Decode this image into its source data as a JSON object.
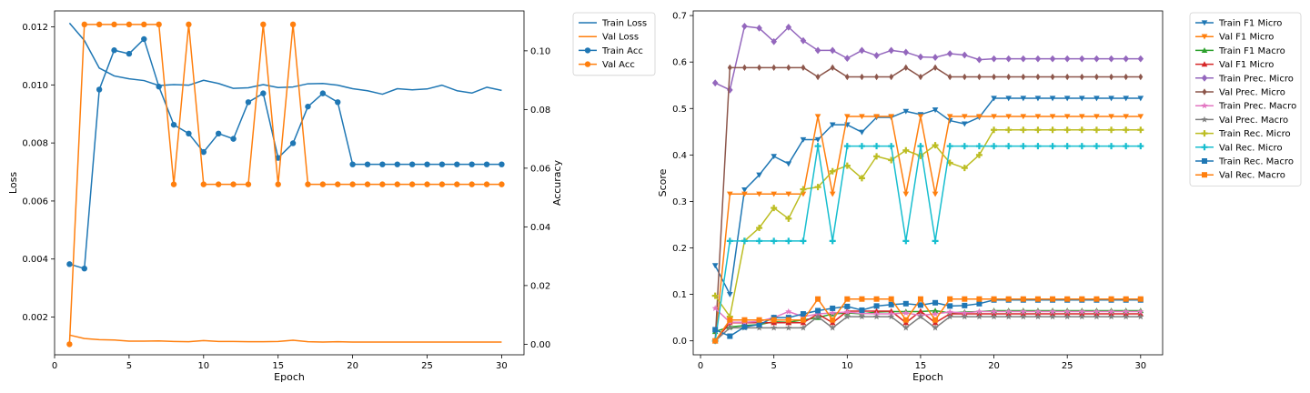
{
  "chart_data": [
    {
      "type": "line",
      "xlabel": "Epoch",
      "ylabel": "Loss",
      "ylabel_right": "Accuracy",
      "xlim": [
        0,
        31.5
      ],
      "ylim": [
        0.0007,
        0.01255
      ],
      "ylim_right": [
        -0.0036,
        0.1136
      ],
      "xticks": [
        "0",
        "5",
        "10",
        "15",
        "20",
        "25",
        "30"
      ],
      "yticks": [
        "0.002",
        "0.004",
        "0.006",
        "0.008",
        "0.010",
        "0.012"
      ],
      "yticks_right": [
        "0.00",
        "0.02",
        "0.04",
        "0.06",
        "0.08",
        "0.10"
      ],
      "grid": false,
      "legend_position": "outside-top-right",
      "x": [
        1,
        2,
        3,
        4,
        5,
        6,
        7,
        8,
        9,
        10,
        11,
        12,
        13,
        14,
        15,
        16,
        17,
        18,
        19,
        20,
        21,
        22,
        23,
        24,
        25,
        26,
        27,
        28,
        29,
        30
      ],
      "series": [
        {
          "name": "Train Loss",
          "axis": "left",
          "color": "#1f77b4",
          "marker": "none",
          "values": [
            0.01213,
            0.01153,
            0.01058,
            0.01031,
            0.01021,
            0.01015,
            0.00998,
            0.01001,
            0.00999,
            0.01016,
            0.01005,
            0.00988,
            0.0099,
            0.01001,
            0.00991,
            0.00993,
            0.01004,
            0.01005,
            0.00999,
            0.00987,
            0.0098,
            0.00968,
            0.00987,
            0.00983,
            0.00986,
            0.00999,
            0.0098,
            0.00972,
            0.00992,
            0.00981
          ]
        },
        {
          "name": "Val Loss",
          "axis": "left",
          "color": "#ff7f0e",
          "marker": "none",
          "values": [
            0.00138,
            0.00126,
            0.00122,
            0.00121,
            0.00117,
            0.00117,
            0.00118,
            0.00116,
            0.00115,
            0.00119,
            0.00116,
            0.00116,
            0.00115,
            0.00115,
            0.00116,
            0.0012,
            0.00115,
            0.00114,
            0.00115,
            0.00114,
            0.00114,
            0.00114,
            0.00114,
            0.00114,
            0.00114,
            0.00114,
            0.00114,
            0.00114,
            0.00114,
            0.00114
          ]
        },
        {
          "name": "Train Acc",
          "axis": "right",
          "color": "#1f77b4",
          "marker": "circle",
          "values": [
            0.0273,
            0.0258,
            0.0868,
            0.1002,
            0.099,
            0.104,
            0.0878,
            0.0748,
            0.0718,
            0.0655,
            0.0718,
            0.07,
            0.0825,
            0.0855,
            0.0635,
            0.0685,
            0.081,
            0.0855,
            0.0825,
            0.0613,
            0.0613,
            0.0613,
            0.0613,
            0.0613,
            0.0613,
            0.0613,
            0.0613,
            0.0613,
            0.0613,
            0.0613
          ]
        },
        {
          "name": "Val Acc",
          "axis": "right",
          "color": "#ff7f0e",
          "marker": "circle",
          "values": [
            0.0,
            0.109,
            0.109,
            0.109,
            0.109,
            0.109,
            0.109,
            0.0545,
            0.109,
            0.0545,
            0.0545,
            0.0545,
            0.0545,
            0.109,
            0.0545,
            0.109,
            0.0545,
            0.0545,
            0.0545,
            0.0545,
            0.0545,
            0.0545,
            0.0545,
            0.0545,
            0.0545,
            0.0545,
            0.0545,
            0.0545,
            0.0545,
            0.0545
          ]
        }
      ]
    },
    {
      "type": "line",
      "xlabel": "Epoch",
      "ylabel": "Score",
      "xlim": [
        -0.5,
        31.5
      ],
      "ylim": [
        -0.03,
        0.71
      ],
      "xticks": [
        "0",
        "5",
        "10",
        "15",
        "20",
        "25",
        "30"
      ],
      "yticks": [
        "0.0",
        "0.1",
        "0.2",
        "0.3",
        "0.4",
        "0.5",
        "0.6",
        "0.7"
      ],
      "grid": false,
      "legend_position": "outside-top-right",
      "x": [
        1,
        2,
        3,
        4,
        5,
        6,
        7,
        8,
        9,
        10,
        11,
        12,
        13,
        14,
        15,
        16,
        17,
        18,
        19,
        20,
        21,
        22,
        23,
        24,
        25,
        26,
        27,
        28,
        29,
        30
      ],
      "series": [
        {
          "name": "Train F1 Micro",
          "color": "#1f77b4",
          "marker": "triangle-down",
          "values": [
            0.162,
            0.1,
            0.325,
            0.357,
            0.397,
            0.381,
            0.433,
            0.433,
            0.465,
            0.465,
            0.449,
            0.481,
            0.481,
            0.494,
            0.487,
            0.497,
            0.474,
            0.467,
            0.481,
            0.522,
            0.522,
            0.522,
            0.522,
            0.522,
            0.522,
            0.522,
            0.522,
            0.522,
            0.522,
            0.522
          ]
        },
        {
          "name": "Val F1 Micro",
          "color": "#ff7f0e",
          "marker": "triangle-down",
          "values": [
            0.0,
            0.316,
            0.316,
            0.316,
            0.316,
            0.316,
            0.316,
            0.483,
            0.316,
            0.483,
            0.483,
            0.483,
            0.483,
            0.316,
            0.483,
            0.316,
            0.483,
            0.483,
            0.483,
            0.483,
            0.483,
            0.483,
            0.483,
            0.483,
            0.483,
            0.483,
            0.483,
            0.483,
            0.483,
            0.483
          ]
        },
        {
          "name": "Train F1 Macro",
          "color": "#2ca02c",
          "marker": "triangle-up",
          "values": [
            0.02,
            0.03,
            0.033,
            0.035,
            0.041,
            0.04,
            0.045,
            0.05,
            0.058,
            0.06,
            0.058,
            0.062,
            0.063,
            0.063,
            0.063,
            0.065,
            0.06,
            0.062,
            0.063,
            0.065,
            0.065,
            0.065,
            0.065,
            0.065,
            0.065,
            0.065,
            0.065,
            0.065,
            0.065,
            0.065
          ]
        },
        {
          "name": "Val F1 Micro",
          "color": "#d62728",
          "marker": "triangle-up",
          "values": [
            0.0,
            0.039,
            0.039,
            0.039,
            0.039,
            0.039,
            0.039,
            0.058,
            0.039,
            0.064,
            0.064,
            0.064,
            0.064,
            0.039,
            0.064,
            0.039,
            0.058,
            0.058,
            0.058,
            0.058,
            0.058,
            0.058,
            0.058,
            0.058,
            0.058,
            0.058,
            0.058,
            0.058,
            0.058,
            0.058
          ]
        },
        {
          "name": "Train Prec. Micro",
          "color": "#9467bd",
          "marker": "diamond",
          "values": [
            0.555,
            0.54,
            0.677,
            0.673,
            0.644,
            0.675,
            0.646,
            0.625,
            0.625,
            0.608,
            0.625,
            0.614,
            0.625,
            0.621,
            0.611,
            0.61,
            0.618,
            0.615,
            0.605,
            0.607,
            0.607,
            0.607,
            0.607,
            0.607,
            0.607,
            0.607,
            0.607,
            0.607,
            0.607,
            0.607
          ]
        },
        {
          "name": "Val Prec. Micro",
          "color": "#8c564b",
          "marker": "thin-diamond",
          "values": [
            0.0,
            0.588,
            0.588,
            0.588,
            0.588,
            0.588,
            0.588,
            0.568,
            0.588,
            0.568,
            0.568,
            0.568,
            0.568,
            0.588,
            0.568,
            0.588,
            0.568,
            0.568,
            0.568,
            0.568,
            0.568,
            0.568,
            0.568,
            0.568,
            0.568,
            0.568,
            0.568,
            0.568,
            0.568,
            0.568
          ]
        },
        {
          "name": "Train Prec. Macro",
          "color": "#e377c2",
          "marker": "star",
          "values": [
            0.07,
            0.04,
            0.04,
            0.042,
            0.05,
            0.063,
            0.052,
            0.058,
            0.06,
            0.062,
            0.059,
            0.058,
            0.058,
            0.06,
            0.055,
            0.058,
            0.062,
            0.06,
            0.063,
            0.063,
            0.063,
            0.063,
            0.063,
            0.063,
            0.063,
            0.063,
            0.063,
            0.063,
            0.063,
            0.063
          ]
        },
        {
          "name": "Val Prec. Macro",
          "color": "#7f7f7f",
          "marker": "star",
          "values": [
            0.0,
            0.028,
            0.028,
            0.028,
            0.028,
            0.028,
            0.028,
            0.052,
            0.028,
            0.052,
            0.052,
            0.052,
            0.052,
            0.028,
            0.052,
            0.028,
            0.052,
            0.052,
            0.052,
            0.052,
            0.052,
            0.052,
            0.052,
            0.052,
            0.052,
            0.052,
            0.052,
            0.052,
            0.052,
            0.052
          ]
        },
        {
          "name": "Train Rec. Micro",
          "color": "#bcbd22",
          "marker": "plus",
          "values": [
            0.097,
            0.052,
            0.215,
            0.243,
            0.286,
            0.263,
            0.326,
            0.331,
            0.365,
            0.377,
            0.35,
            0.397,
            0.389,
            0.41,
            0.398,
            0.421,
            0.383,
            0.372,
            0.4,
            0.454,
            0.454,
            0.454,
            0.454,
            0.454,
            0.454,
            0.454,
            0.454,
            0.454,
            0.454,
            0.454
          ]
        },
        {
          "name": "Val Rec. Micro",
          "color": "#17becf",
          "marker": "plus",
          "values": [
            0.0,
            0.215,
            0.215,
            0.215,
            0.215,
            0.215,
            0.215,
            0.419,
            0.215,
            0.419,
            0.419,
            0.419,
            0.419,
            0.215,
            0.419,
            0.215,
            0.419,
            0.419,
            0.419,
            0.419,
            0.419,
            0.419,
            0.419,
            0.419,
            0.419,
            0.419,
            0.419,
            0.419,
            0.419,
            0.419
          ]
        },
        {
          "name": "Train Rec. Macro",
          "color": "#1f77b4",
          "marker": "square",
          "values": [
            0.024,
            0.01,
            0.03,
            0.035,
            0.05,
            0.05,
            0.058,
            0.065,
            0.07,
            0.074,
            0.066,
            0.075,
            0.078,
            0.08,
            0.077,
            0.082,
            0.075,
            0.076,
            0.08,
            0.088,
            0.088,
            0.088,
            0.088,
            0.088,
            0.088,
            0.088,
            0.088,
            0.088,
            0.088,
            0.088
          ]
        },
        {
          "name": "Val Rec. Macro",
          "color": "#ff7f0e",
          "marker": "square",
          "values": [
            0.0,
            0.045,
            0.045,
            0.045,
            0.045,
            0.045,
            0.045,
            0.09,
            0.045,
            0.09,
            0.09,
            0.09,
            0.09,
            0.045,
            0.09,
            0.045,
            0.09,
            0.09,
            0.09,
            0.09,
            0.09,
            0.09,
            0.09,
            0.09,
            0.09,
            0.09,
            0.09,
            0.09,
            0.09,
            0.09
          ]
        }
      ]
    }
  ]
}
